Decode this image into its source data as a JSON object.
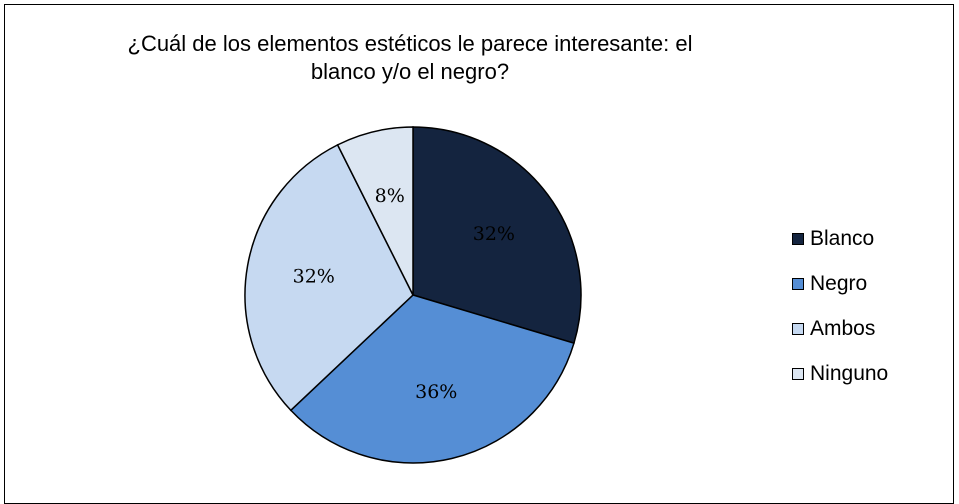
{
  "chart_data": {
    "type": "pie",
    "title_lines": [
      "¿Cuál de los elementos estéticos le parece interesante: el",
      "blanco y/o el negro?"
    ],
    "slices": [
      {
        "name": "Blanco",
        "value": 32,
        "label": "32%",
        "color": "#14243f"
      },
      {
        "name": "Negro",
        "value": 36,
        "label": "36%",
        "color": "#558ed5"
      },
      {
        "name": "Ambos",
        "value": 32,
        "label": "32%",
        "color": "#c6d9f1"
      },
      {
        "name": "Ninguno",
        "value": 8,
        "label": "8%",
        "color": "#dce6f2"
      }
    ],
    "start_angle_deg": 0,
    "direction": "clockwise",
    "legend_position": "right"
  }
}
